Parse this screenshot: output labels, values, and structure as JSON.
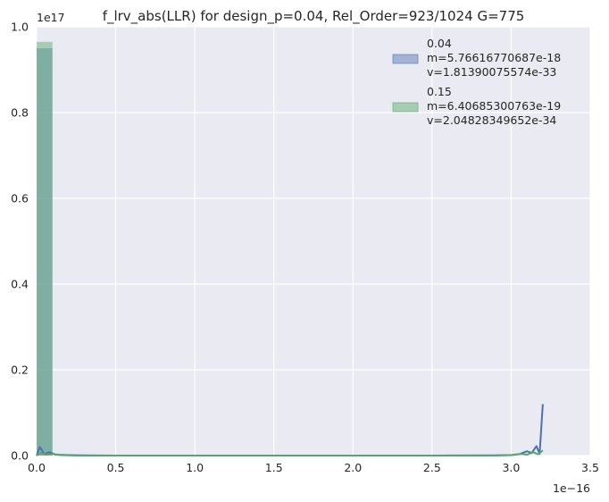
{
  "chart_data": {
    "type": "histogram",
    "title": "f_lrv_abs(LLR) for design_p=0.04, Rel_Order=923/1024 G=775",
    "xlabel": "",
    "ylabel": "",
    "x_offset_text": "1e−16",
    "y_offset_text": "1e17",
    "xlim": [
      0,
      3.5
    ],
    "ylim": [
      0,
      1.0
    ],
    "x_ticks": [
      0.0,
      0.5,
      1.0,
      1.5,
      2.0,
      2.5,
      3.0,
      3.5
    ],
    "x_tick_labels": [
      "0.0",
      "0.5",
      "1.0",
      "1.5",
      "2.0",
      "2.5",
      "3.0",
      "3.5"
    ],
    "y_ticks": [
      0.0,
      0.2,
      0.4,
      0.6,
      0.8,
      1.0
    ],
    "y_tick_labels": [
      "0.0",
      "0.2",
      "0.4",
      "0.6",
      "0.8",
      "1.0"
    ],
    "grid": true,
    "legend_position": "top-right",
    "series": [
      {
        "name": "0.04",
        "legend_lines": [
          "0.04",
          " m=5.76616770687e-18",
          " v=1.81390075574e-33"
        ],
        "color": "#4c72b0",
        "histogram": {
          "bin_start": 0.0,
          "bin_end": 0.1,
          "height": 0.95
        },
        "line_x": [
          0.0,
          0.02,
          0.05,
          0.08,
          0.12,
          0.2,
          0.3,
          0.5,
          1.0,
          1.5,
          2.0,
          2.5,
          2.9,
          3.0,
          3.05,
          3.1,
          3.13,
          3.16,
          3.18,
          3.2
        ],
        "line_y": [
          0.0,
          0.02,
          0.003,
          0.008,
          0.002,
          0.001,
          0.0005,
          0.0,
          0.0,
          0.0,
          0.0,
          0.0,
          0.0005,
          0.001,
          0.003,
          0.01,
          0.006,
          0.022,
          0.004,
          0.12
        ]
      },
      {
        "name": "0.15",
        "legend_lines": [
          "0.15",
          " m=6.40685300763e-19",
          " v=2.04828349652e-34"
        ],
        "color": "#55a868",
        "histogram": {
          "bin_start": 0.0,
          "bin_end": 0.1,
          "height": 0.965
        },
        "line_x": [
          0.0,
          0.03,
          0.06,
          0.1,
          0.15,
          0.25,
          0.5,
          1.0,
          1.5,
          2.0,
          2.5,
          2.9,
          3.0,
          3.06,
          3.1,
          3.14,
          3.17,
          3.2
        ],
        "line_y": [
          0.0,
          0.006,
          0.002,
          0.004,
          0.001,
          0.0,
          0.0,
          0.0,
          0.0,
          0.0,
          0.0,
          0.0,
          0.001,
          0.004,
          0.002,
          0.008,
          0.003,
          0.012
        ]
      }
    ]
  }
}
